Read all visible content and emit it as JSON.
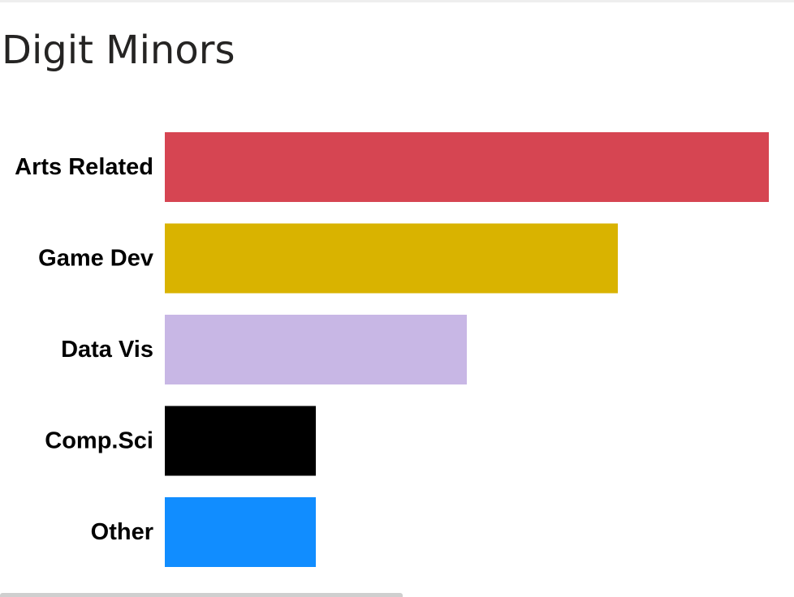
{
  "chart_data": {
    "type": "bar",
    "orientation": "horizontal",
    "title": "Digit Minors",
    "xlabel": "",
    "ylabel": "",
    "categories": [
      "Arts Related",
      "Game Dev",
      "Data Vis",
      "Comp.Sci",
      "Other"
    ],
    "values": [
      4,
      3,
      2,
      1,
      1
    ],
    "colors": [
      "#d64552",
      "#d9b300",
      "#c8b7e5",
      "#000000",
      "#118dff"
    ],
    "xlim": [
      0,
      4
    ],
    "grid": false,
    "legend": "none"
  }
}
